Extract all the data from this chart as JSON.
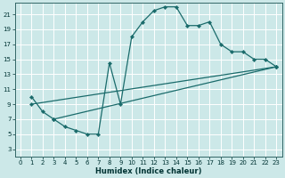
{
  "xlabel": "Humidex (Indice chaleur)",
  "bg_color": "#cce8e8",
  "grid_color": "#ffffff",
  "line_color": "#1a6b6b",
  "xlim": [
    -0.5,
    23.5
  ],
  "ylim": [
    2,
    22.5
  ],
  "xticks": [
    0,
    1,
    2,
    3,
    4,
    5,
    6,
    7,
    8,
    9,
    10,
    11,
    12,
    13,
    14,
    15,
    16,
    17,
    18,
    19,
    20,
    21,
    22,
    23
  ],
  "yticks": [
    3,
    5,
    7,
    9,
    11,
    13,
    15,
    17,
    19,
    21
  ],
  "line1_x": [
    1,
    2,
    3,
    4,
    5,
    6,
    7,
    8,
    9,
    10,
    11,
    12,
    13,
    14,
    15,
    16,
    17,
    18,
    19,
    20,
    21,
    22,
    23
  ],
  "line1_y": [
    10,
    8,
    7,
    6,
    5.5,
    5,
    5,
    14.5,
    9,
    18,
    20,
    21.5,
    22,
    22,
    19.5,
    19.5,
    20,
    17,
    16,
    16,
    15,
    15,
    14
  ],
  "line2_x": [
    1,
    23
  ],
  "line2_y": [
    9,
    14
  ],
  "line3_x": [
    3,
    23
  ],
  "line3_y": [
    7,
    14
  ]
}
